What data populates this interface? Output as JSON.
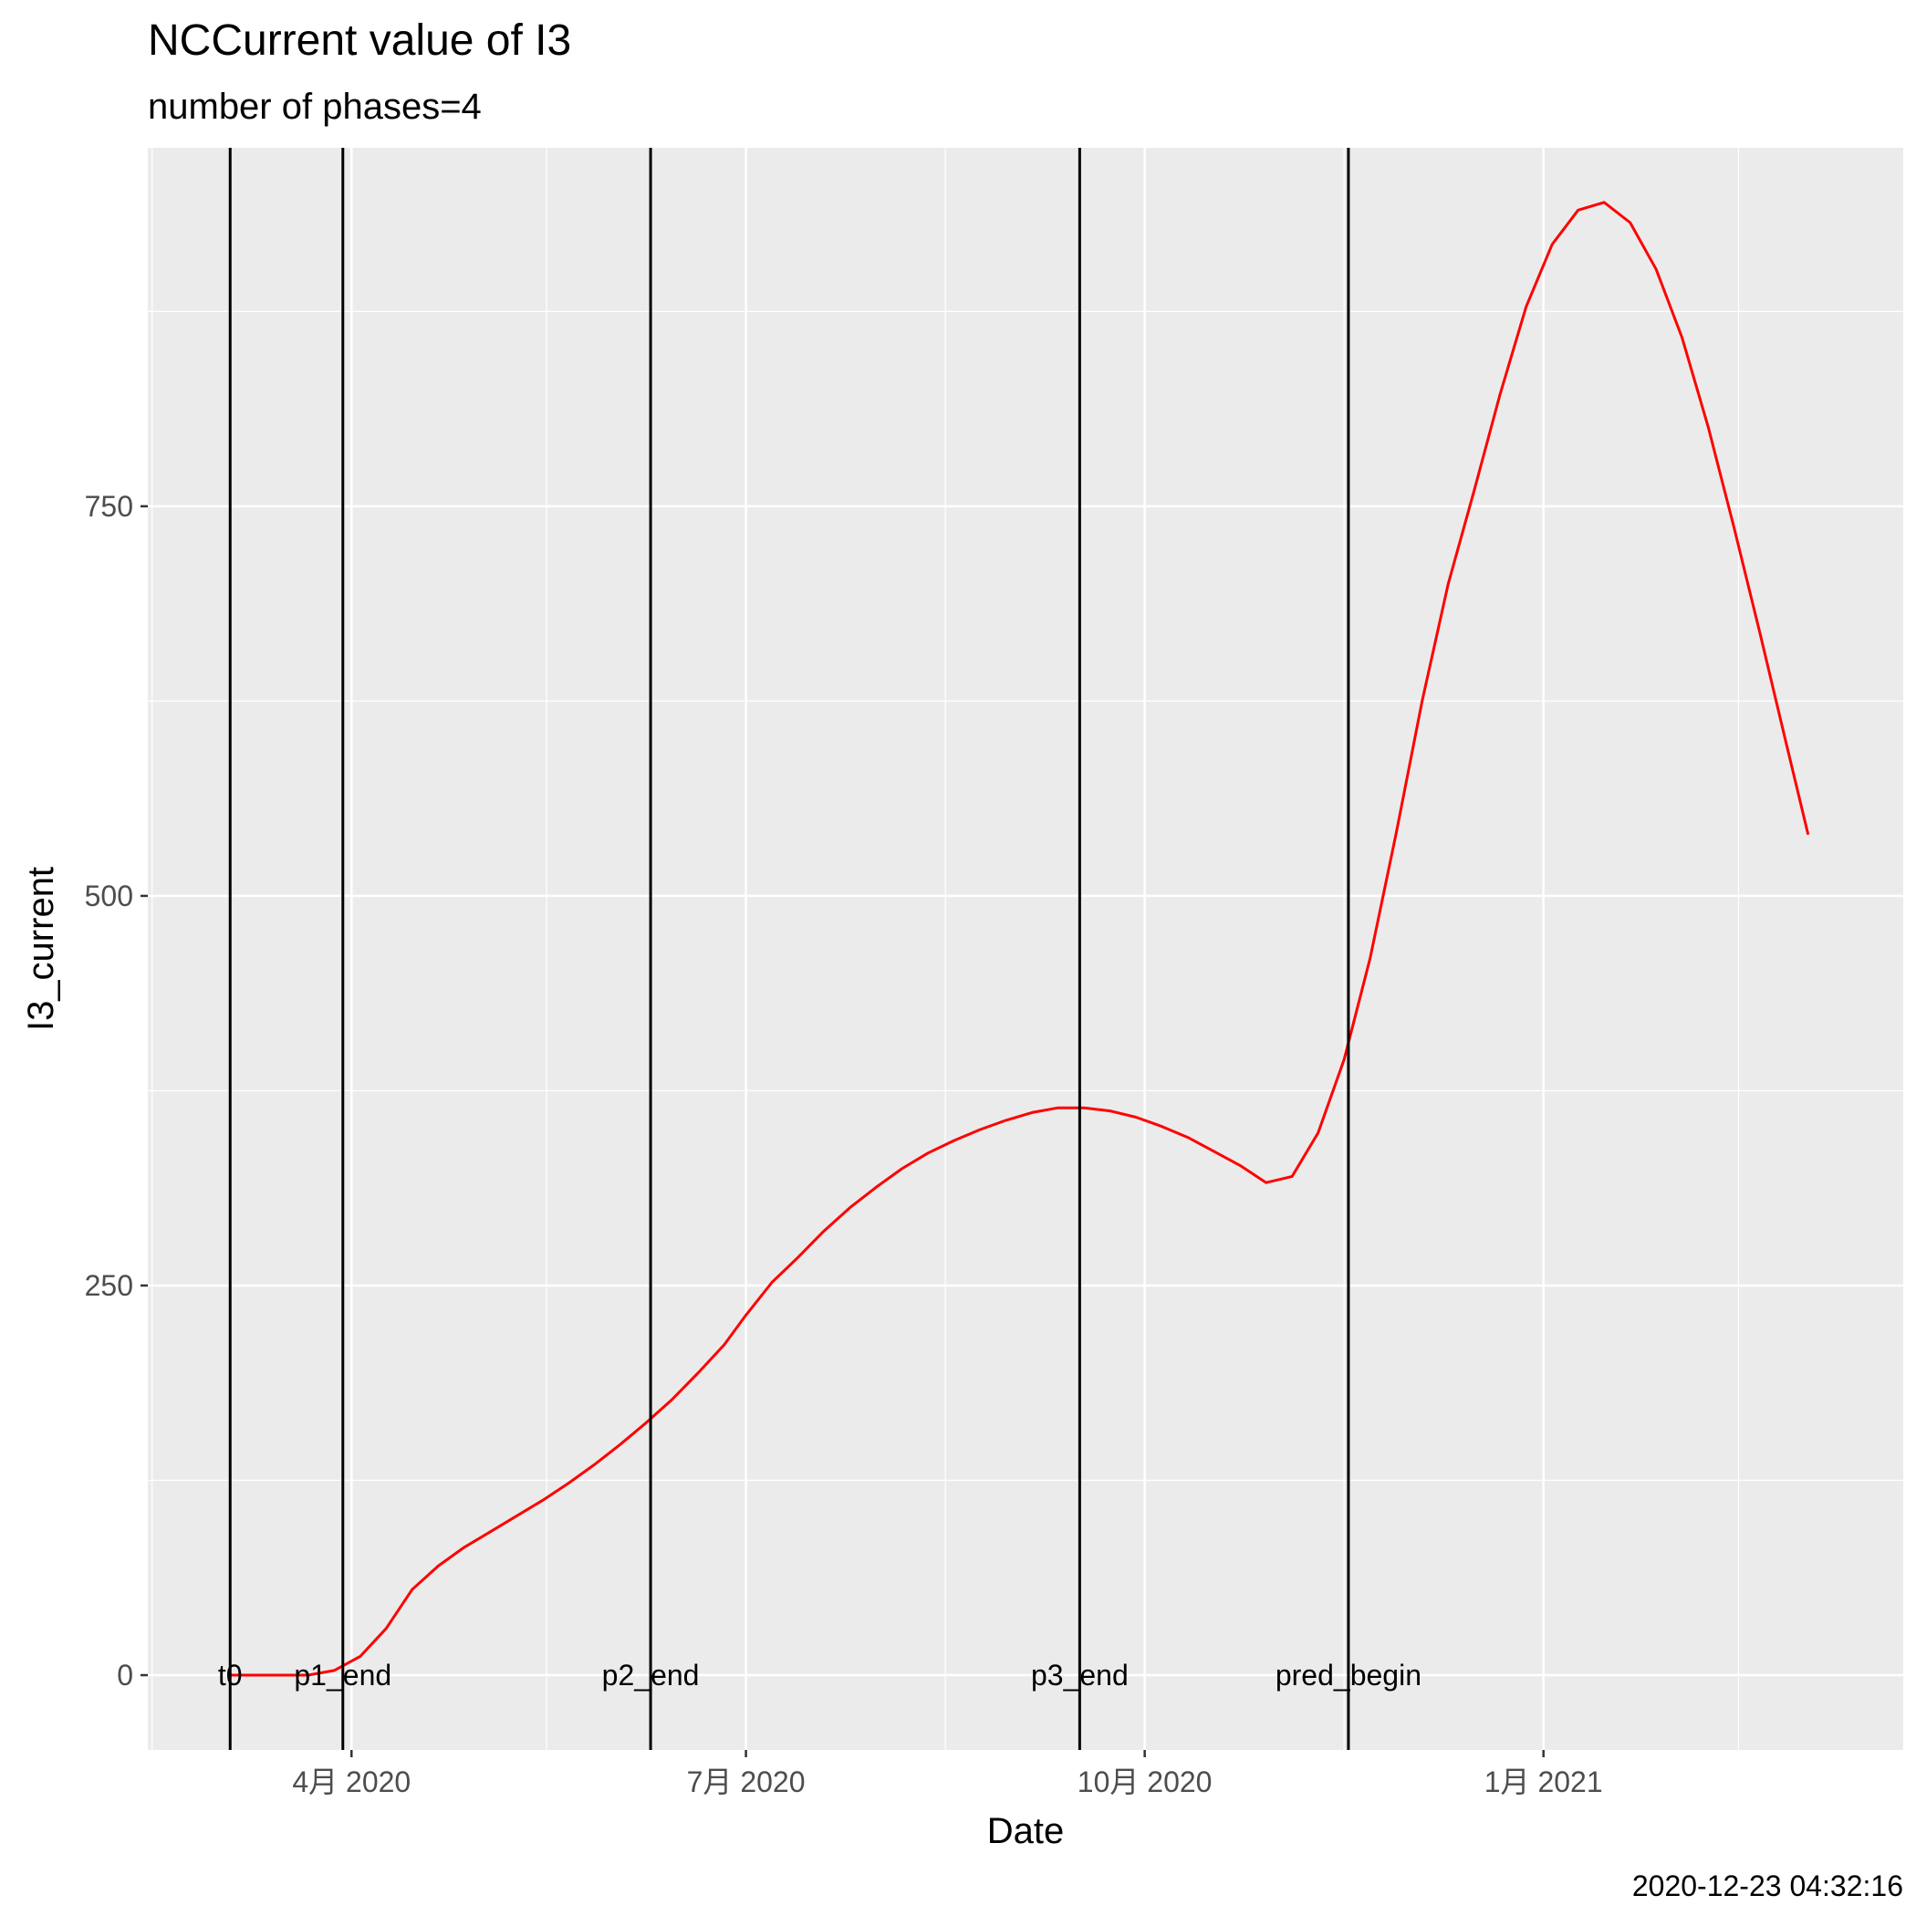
{
  "chart_data": {
    "type": "line",
    "title": "NCCurrent value of I3",
    "subtitle": "number of phases=4",
    "xlabel": "Date",
    "ylabel": "I3_current",
    "caption": "2020-12-23 04:32:16",
    "x_ticks": [
      {
        "date": "2020-04-01",
        "label": "4月 2020"
      },
      {
        "date": "2020-07-01",
        "label": "7月 2020"
      },
      {
        "date": "2020-10-01",
        "label": "10月 2020"
      },
      {
        "date": "2021-01-01",
        "label": "1月 2021"
      }
    ],
    "y_ticks": [
      0,
      250,
      500,
      750
    ],
    "xlim": [
      "2020-02-14",
      "2021-03-25"
    ],
    "ylim": [
      -48,
      980
    ],
    "grid": true,
    "series": [
      {
        "color": "#ff0000",
        "points": [
          [
            "2020-03-04",
            0
          ],
          [
            "2020-03-10",
            0
          ],
          [
            "2020-03-16",
            0
          ],
          [
            "2020-03-22",
            0
          ],
          [
            "2020-03-28",
            3
          ],
          [
            "2020-04-03",
            12
          ],
          [
            "2020-04-09",
            30
          ],
          [
            "2020-04-15",
            55
          ],
          [
            "2020-04-21",
            70
          ],
          [
            "2020-04-27",
            82
          ],
          [
            "2020-05-03",
            92
          ],
          [
            "2020-05-09",
            102
          ],
          [
            "2020-05-15",
            112
          ],
          [
            "2020-05-21",
            123
          ],
          [
            "2020-05-27",
            135
          ],
          [
            "2020-06-02",
            148
          ],
          [
            "2020-06-08",
            162
          ],
          [
            "2020-06-14",
            177
          ],
          [
            "2020-06-20",
            194
          ],
          [
            "2020-06-26",
            212
          ],
          [
            "2020-07-01",
            231
          ],
          [
            "2020-07-07",
            252
          ],
          [
            "2020-07-13",
            268
          ],
          [
            "2020-07-19",
            285
          ],
          [
            "2020-07-25",
            300
          ],
          [
            "2020-07-31",
            313
          ],
          [
            "2020-08-06",
            325
          ],
          [
            "2020-08-12",
            335
          ],
          [
            "2020-08-18",
            343
          ],
          [
            "2020-08-24",
            350
          ],
          [
            "2020-08-30",
            356
          ],
          [
            "2020-09-05",
            361
          ],
          [
            "2020-09-11",
            364
          ],
          [
            "2020-09-17",
            364
          ],
          [
            "2020-09-23",
            362
          ],
          [
            "2020-09-29",
            358
          ],
          [
            "2020-10-05",
            352
          ],
          [
            "2020-10-11",
            345
          ],
          [
            "2020-10-17",
            336
          ],
          [
            "2020-10-23",
            327
          ],
          [
            "2020-10-29",
            316
          ],
          [
            "2020-11-04",
            320
          ],
          [
            "2020-11-10",
            348
          ],
          [
            "2020-11-16",
            395
          ],
          [
            "2020-11-22",
            460
          ],
          [
            "2020-11-28",
            540
          ],
          [
            "2020-12-04",
            625
          ],
          [
            "2020-12-10",
            700
          ],
          [
            "2020-12-16",
            760
          ],
          [
            "2020-12-22",
            822
          ],
          [
            "2020-12-28",
            878
          ],
          [
            "2021-01-03",
            918
          ],
          [
            "2021-01-09",
            940
          ],
          [
            "2021-01-15",
            945
          ],
          [
            "2021-01-21",
            932
          ],
          [
            "2021-01-27",
            902
          ],
          [
            "2021-02-02",
            858
          ],
          [
            "2021-02-08",
            801
          ],
          [
            "2021-02-14",
            736
          ],
          [
            "2021-02-20",
            668
          ],
          [
            "2021-02-26",
            598
          ],
          [
            "2021-03-03",
            540
          ]
        ]
      }
    ],
    "vlines": [
      {
        "date": "2020-03-04",
        "label": "t0"
      },
      {
        "date": "2020-03-30",
        "label": "p1_end"
      },
      {
        "date": "2020-06-09",
        "label": "p2_end"
      },
      {
        "date": "2020-09-16",
        "label": "p3_end"
      },
      {
        "date": "2020-11-17",
        "label": "pred_begin"
      }
    ]
  }
}
